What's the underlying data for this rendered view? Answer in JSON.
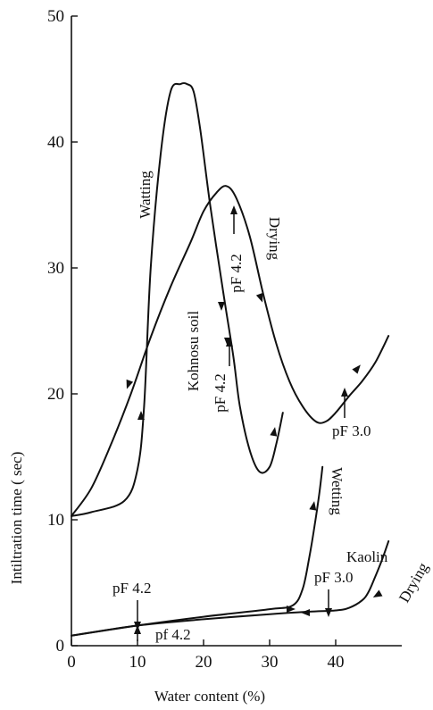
{
  "chart_data": {
    "type": "line",
    "xlabel": "Water content (%)",
    "ylabel": "Intiltration time ( sec)",
    "xlim": [
      0,
      50
    ],
    "ylim": [
      0,
      50
    ],
    "x_ticks": [
      0,
      10,
      20,
      30,
      40
    ],
    "y_ticks": [
      0,
      10,
      20,
      30,
      40,
      50
    ],
    "grid": false,
    "series": [
      {
        "name": "Watting",
        "x": [
          0,
          3,
          8,
          10,
          11,
          12,
          13.5,
          15,
          16.5,
          17.5,
          18.5,
          19.5,
          21,
          23,
          24.5,
          25.5,
          27,
          28.5,
          30,
          31,
          32
        ],
        "y": [
          10.3,
          10.6,
          11.5,
          14,
          19,
          30,
          39,
          44,
          44.6,
          44.6,
          44,
          41,
          35,
          28,
          23,
          19,
          15.5,
          13.8,
          14.2,
          16,
          18.5
        ]
      },
      {
        "name": "Drying",
        "x": [
          0,
          3,
          6,
          9,
          12,
          15,
          18,
          20,
          22,
          23.5,
          25,
          27,
          29,
          31,
          33,
          35,
          37,
          38.5,
          40,
          42,
          44,
          46,
          48
        ],
        "y": [
          10.3,
          12.5,
          16,
          20,
          24.5,
          28.5,
          32,
          34.5,
          36,
          36.5,
          35.5,
          32.5,
          28,
          24,
          21,
          19,
          17.8,
          17.8,
          18.5,
          19.8,
          21,
          22.5,
          24.6
        ]
      },
      {
        "name": "Wetting",
        "x": [
          0,
          10,
          20,
          30,
          33.5,
          35,
          36,
          36.8,
          37.5,
          38
        ],
        "y": [
          0.8,
          1.6,
          2.3,
          2.9,
          3.2,
          4.5,
          7,
          9.5,
          12,
          14.2
        ]
      },
      {
        "name": "Drying",
        "x": [
          0,
          10,
          20,
          30,
          36,
          40,
          42,
          44,
          45,
          46,
          47,
          48
        ],
        "y": [
          0.8,
          1.6,
          2.1,
          2.5,
          2.7,
          2.8,
          3,
          3.6,
          4.3,
          5.5,
          6.8,
          8.3
        ]
      }
    ],
    "annotations": {
      "watting": "Watting",
      "drying_upper": "Drying",
      "kohnosu": "Kohnosu soil",
      "pf42_a": "pF 4.2",
      "pf42_b": "pF 4.2",
      "pf30_upper": "pF 3.0",
      "wetting": "Wetting",
      "kaolin": "Kaolin",
      "drying_lower": "Drying",
      "pf42_c": "pF 4.2",
      "pf42_d": "pf 4.2",
      "pf30_lower": "pF 3.0"
    }
  }
}
